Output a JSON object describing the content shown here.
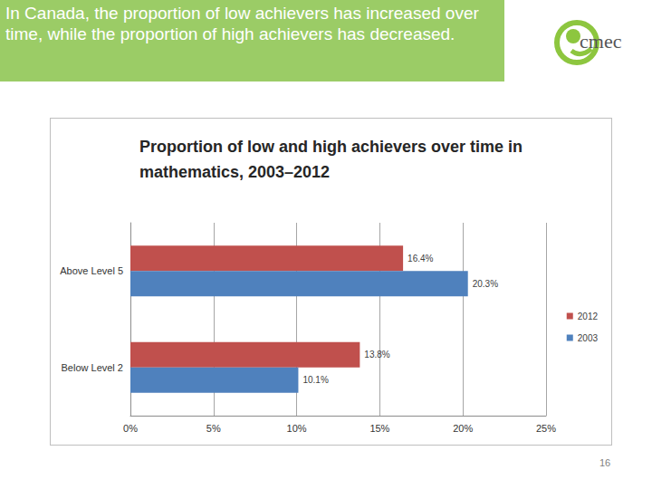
{
  "slide": {
    "heading": "In Canada, the proportion of low achievers has increased over time, while the proportion of high achievers has decreased.",
    "logo": "cmec",
    "page": 16
  },
  "chart_data": {
    "type": "bar",
    "orientation": "horizontal",
    "title": "Proportion of low and high achievers over time in\nmathematics, 2003–2012",
    "categories": [
      "Above Level 5",
      "Below Level 2"
    ],
    "series": [
      {
        "name": "2012",
        "color": "#c0504d",
        "values": [
          16.4,
          13.8
        ],
        "value_labels": [
          "16.4%",
          "13.8%"
        ]
      },
      {
        "name": "2003",
        "color": "#4f81bd",
        "values": [
          20.3,
          10.1
        ],
        "value_labels": [
          "20.3%",
          "10.1%"
        ]
      }
    ],
    "xlim": [
      0,
      25
    ],
    "xticks": [
      {
        "value": 0,
        "label": "0%"
      },
      {
        "value": 5,
        "label": "5%"
      },
      {
        "value": 10,
        "label": "10%"
      },
      {
        "value": 15,
        "label": "15%"
      },
      {
        "value": 20,
        "label": "20%"
      },
      {
        "value": 25,
        "label": "25%"
      }
    ],
    "grid": true,
    "data_labels": true,
    "legend": "right"
  }
}
